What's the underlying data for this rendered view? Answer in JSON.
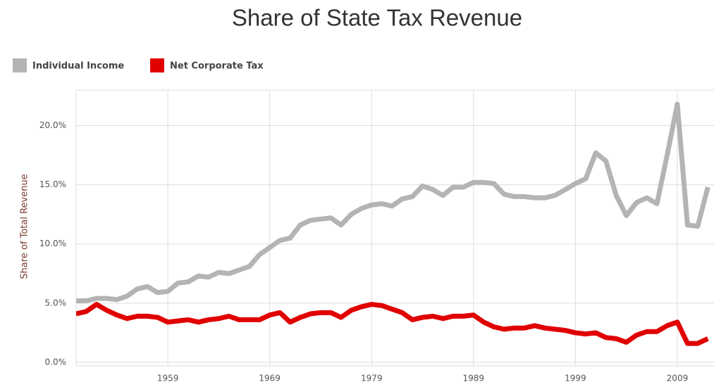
{
  "chart_data": {
    "type": "line",
    "title": "Share of State Tax Revenue",
    "y_label": "Share of Total Revenue",
    "x": [
      1950,
      1951,
      1952,
      1953,
      1954,
      1955,
      1956,
      1957,
      1958,
      1959,
      1960,
      1961,
      1962,
      1963,
      1964,
      1965,
      1966,
      1967,
      1968,
      1969,
      1970,
      1971,
      1972,
      1973,
      1974,
      1975,
      1976,
      1977,
      1978,
      1979,
      1980,
      1981,
      1982,
      1983,
      1984,
      1985,
      1986,
      1987,
      1988,
      1989,
      1990,
      1991,
      1992,
      1993,
      1994,
      1995,
      1996,
      1997,
      1998,
      1999,
      2000,
      2001,
      2002,
      2003,
      2004,
      2005,
      2006,
      2007,
      2008,
      2009,
      2010,
      2011,
      2012
    ],
    "series": [
      {
        "name": "Individual Income",
        "color": "#b4b4b4",
        "values": [
          5.2,
          5.2,
          5.4,
          5.4,
          5.3,
          5.6,
          6.2,
          6.4,
          5.9,
          6.0,
          6.7,
          6.8,
          7.3,
          7.2,
          7.6,
          7.5,
          7.8,
          8.1,
          9.1,
          9.7,
          10.3,
          10.5,
          11.6,
          12.0,
          12.1,
          12.2,
          11.6,
          12.5,
          13.0,
          13.3,
          13.4,
          13.2,
          13.8,
          14.0,
          14.9,
          14.6,
          14.1,
          14.8,
          14.8,
          15.2,
          15.2,
          15.1,
          14.2,
          14.0,
          14.0,
          13.9,
          13.9,
          14.1,
          14.6,
          15.1,
          15.5,
          17.7,
          17.0,
          14.1,
          12.4,
          13.5,
          13.9,
          13.4,
          17.5,
          21.8,
          11.6,
          11.5,
          14.8
        ]
      },
      {
        "name": "Net Corporate Tax",
        "color": "#e00000",
        "values": [
          4.1,
          4.3,
          4.9,
          4.4,
          4.0,
          3.7,
          3.9,
          3.9,
          3.8,
          3.4,
          3.5,
          3.6,
          3.4,
          3.6,
          3.7,
          3.9,
          3.6,
          3.6,
          3.6,
          4.0,
          4.2,
          3.4,
          3.8,
          4.1,
          4.2,
          4.2,
          3.8,
          4.4,
          4.7,
          4.9,
          4.8,
          4.5,
          4.2,
          3.6,
          3.8,
          3.9,
          3.7,
          3.9,
          3.9,
          4.0,
          3.4,
          3.0,
          2.8,
          2.9,
          2.9,
          3.1,
          2.9,
          2.8,
          2.7,
          2.5,
          2.4,
          2.5,
          2.1,
          2.0,
          1.7,
          2.3,
          2.6,
          2.6,
          3.1,
          3.4,
          1.6,
          1.6,
          2.0
        ]
      }
    ],
    "xlim": [
      1950,
      2012.6
    ],
    "xticks": [
      1959,
      1969,
      1979,
      1989,
      1999,
      2009
    ],
    "ylim": [
      0,
      23
    ],
    "yticks": [
      {
        "value": 0,
        "label": "0.0%"
      },
      {
        "value": 5,
        "label": "5.0%"
      },
      {
        "value": 10,
        "label": "10.0%"
      },
      {
        "value": 15,
        "label": "15.0%"
      },
      {
        "value": 20,
        "label": "20.0%"
      }
    ],
    "grid": true,
    "legend": "top-left"
  }
}
